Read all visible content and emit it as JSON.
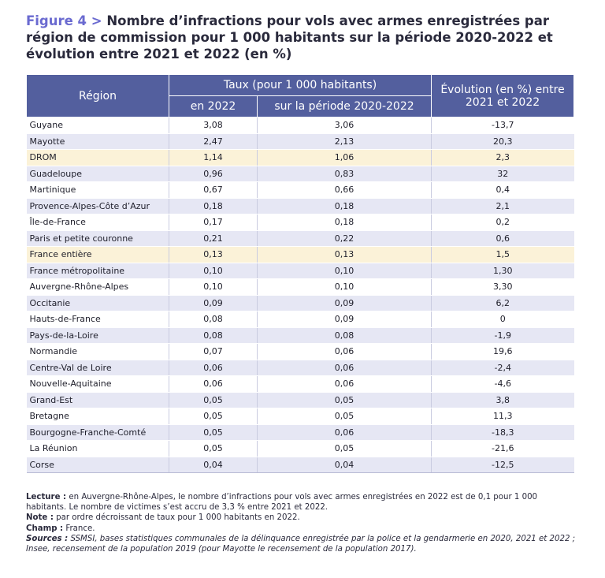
{
  "figure": {
    "label": "Figure 4 >",
    "title": "Nombre d’infractions pour vols avec armes enregistrées par région de commission pour 1 000 habitants sur la période 2020-2022 et évolution entre 2021 et 2022 (en %)"
  },
  "table": {
    "header": {
      "region": "Région",
      "rate_group": "Taux (pour 1 000 habitants)",
      "rate_2022": "en 2022",
      "rate_period": "sur la période 2020-2022",
      "evolution": "Évolution (en %) entre 2021 et 2022"
    },
    "rows": [
      {
        "region": "Guyane",
        "rate_2022": "3,08",
        "rate_period": "3,06",
        "evolution": "-13,7"
      },
      {
        "region": "Mayotte",
        "rate_2022": "2,47",
        "rate_period": "2,13",
        "evolution": "20,3"
      },
      {
        "region": "DROM",
        "rate_2022": "1,14",
        "rate_period": "1,06",
        "evolution": "2,3",
        "highlight": true
      },
      {
        "region": "Guadeloupe",
        "rate_2022": "0,96",
        "rate_period": "0,83",
        "evolution": "32"
      },
      {
        "region": "Martinique",
        "rate_2022": "0,67",
        "rate_period": "0,66",
        "evolution": "0,4"
      },
      {
        "region": "Provence-Alpes-Côte d’Azur",
        "rate_2022": "0,18",
        "rate_period": "0,18",
        "evolution": "2,1"
      },
      {
        "region": "Île-de-France",
        "rate_2022": "0,17",
        "rate_period": "0,18",
        "evolution": "0,2"
      },
      {
        "region": "Paris et petite couronne",
        "rate_2022": "0,21",
        "rate_period": "0,22",
        "evolution": "0,6"
      },
      {
        "region": "France entière",
        "rate_2022": "0,13",
        "rate_period": "0,13",
        "evolution": "1,5",
        "highlight": true
      },
      {
        "region": "France métropolitaine",
        "rate_2022": "0,10",
        "rate_period": "0,10",
        "evolution": "1,30"
      },
      {
        "region": "Auvergne-Rhône-Alpes",
        "rate_2022": "0,10",
        "rate_period": "0,10",
        "evolution": "3,30"
      },
      {
        "region": "Occitanie",
        "rate_2022": "0,09",
        "rate_period": "0,09",
        "evolution": "6,2"
      },
      {
        "region": "Hauts-de-France",
        "rate_2022": "0,08",
        "rate_period": "0,09",
        "evolution": "0"
      },
      {
        "region": "Pays-de-la-Loire",
        "rate_2022": "0,08",
        "rate_period": "0,08",
        "evolution": "-1,9"
      },
      {
        "region": "Normandie",
        "rate_2022": "0,07",
        "rate_period": "0,06",
        "evolution": "19,6"
      },
      {
        "region": "Centre-Val de Loire",
        "rate_2022": "0,06",
        "rate_period": "0,06",
        "evolution": "-2,4"
      },
      {
        "region": "Nouvelle-Aquitaine",
        "rate_2022": "0,06",
        "rate_period": "0,06",
        "evolution": "-4,6"
      },
      {
        "region": "Grand-Est",
        "rate_2022": "0,05",
        "rate_period": "0,05",
        "evolution": "3,8"
      },
      {
        "region": "Bretagne",
        "rate_2022": "0,05",
        "rate_period": "0,05",
        "evolution": "11,3"
      },
      {
        "region": "Bourgogne-Franche-Comté",
        "rate_2022": "0,05",
        "rate_period": "0,06",
        "evolution": "-18,3"
      },
      {
        "region": "La Réunion",
        "rate_2022": "0,05",
        "rate_period": "0,05",
        "evolution": "-21,6"
      },
      {
        "region": "Corse",
        "rate_2022": "0,04",
        "rate_period": "0,04",
        "evolution": "-12,5"
      }
    ]
  },
  "notes": {
    "lecture_label": "Lecture :",
    "lecture_text": " en Auvergne-Rhône-Alpes, le nombre d’infractions pour vols avec armes enregistrées en 2022 est de 0,1 pour 1 000 habitants. Le nombre de victimes s’est accru de 3,3 % entre 2021 et 2022.",
    "note_label": "Note :",
    "note_text": " par ordre décroissant de taux pour 1 000 habitants en 2022.",
    "champ_label": "Champ :",
    "champ_text": " France.",
    "sources_label": "Sources :",
    "sources_text": " SSMSI, bases statistiques communales de la délinquance enregistrée par la police et la gendarmerie en 2020, 2021 et 2022 ; Insee, recensement de la population 2019 (pour Mayotte le recensement de la population 2017)."
  }
}
